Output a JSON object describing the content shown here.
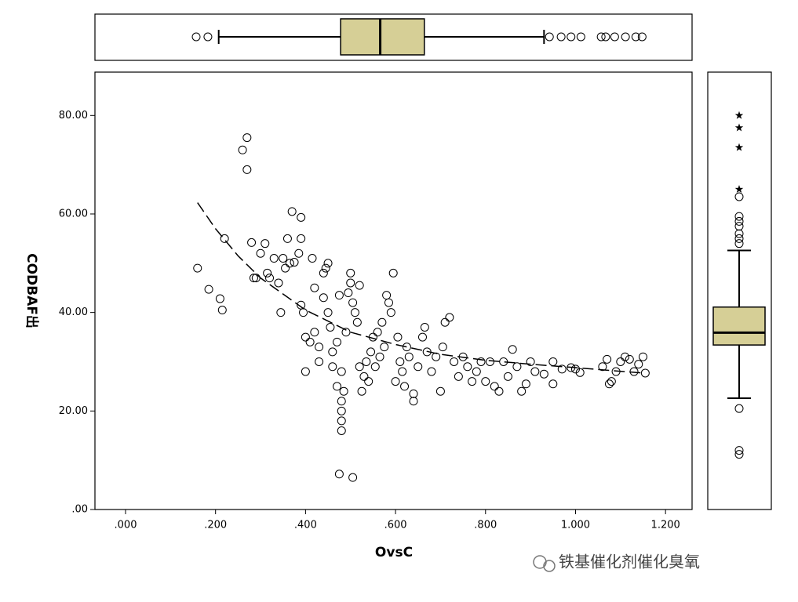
{
  "chart_data": {
    "type": "scatter",
    "x_label": "OvsC",
    "y_label": "CODBAF出",
    "xlim": [
      -0.068,
      1.259
    ],
    "ylim": [
      0,
      88.8
    ],
    "xticks": [
      {
        "value": 0,
        "label": ".000"
      },
      {
        "value": 0.2,
        "label": ".200"
      },
      {
        "value": 0.4,
        "label": ".400"
      },
      {
        "value": 0.6,
        "label": ".600"
      },
      {
        "value": 0.8,
        "label": ".800"
      },
      {
        "value": 1.0,
        "label": "1.000"
      },
      {
        "value": 1.2,
        "label": "1.200"
      }
    ],
    "yticks": [
      {
        "value": 0,
        "label": ".00"
      },
      {
        "value": 20,
        "label": "20.00"
      },
      {
        "value": 40,
        "label": "40.00"
      },
      {
        "value": 60,
        "label": "60.00"
      },
      {
        "value": 80,
        "label": "80.00"
      }
    ],
    "x": [
      0.16,
      0.185,
      0.21,
      0.215,
      0.22,
      0.26,
      0.27,
      0.27,
      0.28,
      0.285,
      0.29,
      0.3,
      0.31,
      0.315,
      0.32,
      0.33,
      0.34,
      0.345,
      0.35,
      0.355,
      0.36,
      0.365,
      0.37,
      0.375,
      0.385,
      0.39,
      0.39,
      0.39,
      0.395,
      0.4,
      0.4,
      0.41,
      0.415,
      0.42,
      0.42,
      0.43,
      0.43,
      0.44,
      0.44,
      0.445,
      0.45,
      0.45,
      0.455,
      0.46,
      0.46,
      0.47,
      0.47,
      0.475,
      0.475,
      0.48,
      0.48,
      0.48,
      0.48,
      0.48,
      0.485,
      0.49,
      0.495,
      0.5,
      0.5,
      0.505,
      0.505,
      0.51,
      0.515,
      0.52,
      0.52,
      0.525,
      0.53,
      0.535,
      0.54,
      0.545,
      0.55,
      0.555,
      0.56,
      0.565,
      0.57,
      0.575,
      0.58,
      0.585,
      0.59,
      0.595,
      0.6,
      0.605,
      0.61,
      0.615,
      0.62,
      0.625,
      0.63,
      0.64,
      0.64,
      0.65,
      0.66,
      0.665,
      0.67,
      0.68,
      0.69,
      0.7,
      0.705,
      0.71,
      0.72,
      0.73,
      0.74,
      0.75,
      0.76,
      0.77,
      0.78,
      0.79,
      0.8,
      0.81,
      0.82,
      0.83,
      0.84,
      0.85,
      0.86,
      0.87,
      0.88,
      0.89,
      0.9,
      0.91,
      0.93,
      0.95,
      0.95,
      0.97,
      0.99,
      1.0,
      1.01,
      1.06,
      1.07,
      1.075,
      1.08,
      1.09,
      1.1,
      1.11,
      1.12,
      1.13,
      1.14,
      1.15,
      1.155
    ],
    "y": [
      49,
      44.7,
      42.8,
      40.5,
      55,
      73,
      75.5,
      69,
      54.2,
      47,
      47,
      52,
      54,
      48,
      47,
      51,
      46,
      40,
      51,
      49,
      55,
      50,
      60.5,
      50.2,
      52,
      59.3,
      55,
      41.5,
      40,
      35,
      28,
      34,
      51,
      45,
      36,
      33,
      30,
      43,
      48,
      49,
      50,
      40,
      37,
      32,
      29,
      25,
      34,
      7.2,
      43.5,
      28,
      22,
      20,
      18,
      16,
      24,
      36,
      44,
      48,
      46,
      6.5,
      42,
      40,
      38,
      45.5,
      29,
      24,
      27,
      30,
      26,
      32,
      35,
      29,
      36,
      31,
      38,
      33,
      43.5,
      42,
      40,
      48,
      26,
      35,
      30,
      28,
      25,
      33,
      31,
      22,
      23.5,
      29,
      35,
      37,
      32,
      28,
      31,
      24,
      33,
      38,
      39,
      30,
      27,
      31,
      29,
      26,
      28,
      30,
      26,
      30,
      25,
      24,
      30,
      27,
      32.5,
      29,
      24,
      25.5,
      30,
      28,
      27.5,
      25.5,
      30,
      28.5,
      28.8,
      28.5,
      27.8,
      29,
      30.5,
      25.5,
      26,
      28,
      30,
      31,
      30.5,
      28,
      29.5,
      31,
      27.7
    ],
    "fit_line": {
      "x": [
        0.16,
        0.2,
        0.25,
        0.3,
        0.4,
        0.5,
        0.6,
        0.7,
        0.8,
        0.9,
        1.0,
        1.15
      ],
      "y": [
        62.3,
        57,
        51.5,
        47,
        40.5,
        36,
        33.5,
        31.5,
        30.3,
        29.5,
        28.8,
        27.7
      ]
    },
    "x_boxplot": {
      "whisker_low": 0.207,
      "q1": 0.478,
      "median": 0.566,
      "q3": 0.664,
      "whisker_high": 0.93,
      "outliers": [
        0.157,
        0.183,
        0.942,
        0.968,
        0.99,
        1.012,
        1.057,
        1.067,
        1.087,
        1.111,
        1.134,
        1.148
      ]
    },
    "y_boxplot": {
      "whisker_low": 22.6,
      "q1": 33.4,
      "median": 35.9,
      "q3": 41.1,
      "whisker_high": 52.6,
      "outliers": [
        63.5,
        59.5,
        58.5,
        57.5,
        56,
        55,
        54,
        20.5,
        12,
        11.2
      ],
      "extremes": [
        80,
        77.5,
        73.5,
        65
      ]
    },
    "box_color": "#d6cf96",
    "watermark": "铁基催化剂催化臭氧"
  }
}
